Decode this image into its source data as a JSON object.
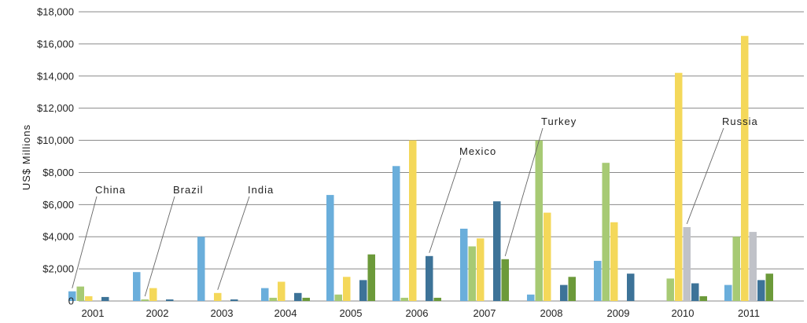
{
  "chart_data": {
    "type": "bar",
    "ylabel": "US$ Millions",
    "xlabel": "",
    "ylim": [
      0,
      18000
    ],
    "y_ticks": [
      "$18,000",
      "$16,000",
      "$14,000",
      "$12,000",
      "$10,000",
      "$8,000",
      "$6,000",
      "$4,000",
      "$2,000",
      "0"
    ],
    "y_tick_values": [
      18000,
      16000,
      14000,
      12000,
      10000,
      8000,
      6000,
      4000,
      2000,
      0
    ],
    "grid": true,
    "categories": [
      "2001",
      "2002",
      "2003",
      "2004",
      "2005",
      "2006",
      "2007",
      "2008",
      "2009",
      "2010",
      "2011"
    ],
    "series": [
      {
        "name": "China",
        "color": "#6aaedb",
        "values": [
          600,
          1800,
          4000,
          800,
          6600,
          8400,
          4500,
          400,
          2500,
          0,
          1000
        ]
      },
      {
        "name": "Brazil",
        "color": "#a7ca74",
        "values": [
          900,
          100,
          0,
          200,
          400,
          200,
          3400,
          10000,
          8600,
          1400,
          4000
        ]
      },
      {
        "name": "India",
        "color": "#f4d85a",
        "values": [
          300,
          800,
          500,
          1200,
          1500,
          10000,
          3900,
          5500,
          4900,
          14200,
          16500
        ]
      },
      {
        "name": "Russia",
        "color": "#c0c2c8",
        "values": [
          0,
          0,
          0,
          0,
          0,
          0,
          0,
          0,
          0,
          4600,
          4300
        ]
      },
      {
        "name": "Mexico",
        "color": "#3d7398",
        "values": [
          250,
          100,
          100,
          500,
          1300,
          2800,
          6200,
          1000,
          1700,
          1100,
          1300
        ]
      },
      {
        "name": "Turkey",
        "color": "#6c9a3a",
        "values": [
          0,
          0,
          0,
          200,
          2900,
          200,
          2600,
          1500,
          0,
          300,
          1700
        ]
      }
    ],
    "annotations": [
      {
        "text": "China",
        "series": "China",
        "category": "2001"
      },
      {
        "text": "Brazil",
        "series": "Brazil",
        "category": "2002"
      },
      {
        "text": "India",
        "series": "India",
        "category": "2003"
      },
      {
        "text": "Mexico",
        "series": "Mexico",
        "category": "2006"
      },
      {
        "text": "Turkey",
        "series": "Turkey",
        "category": "2007"
      },
      {
        "text": "Russia",
        "series": "Russia",
        "category": "2010"
      }
    ]
  }
}
